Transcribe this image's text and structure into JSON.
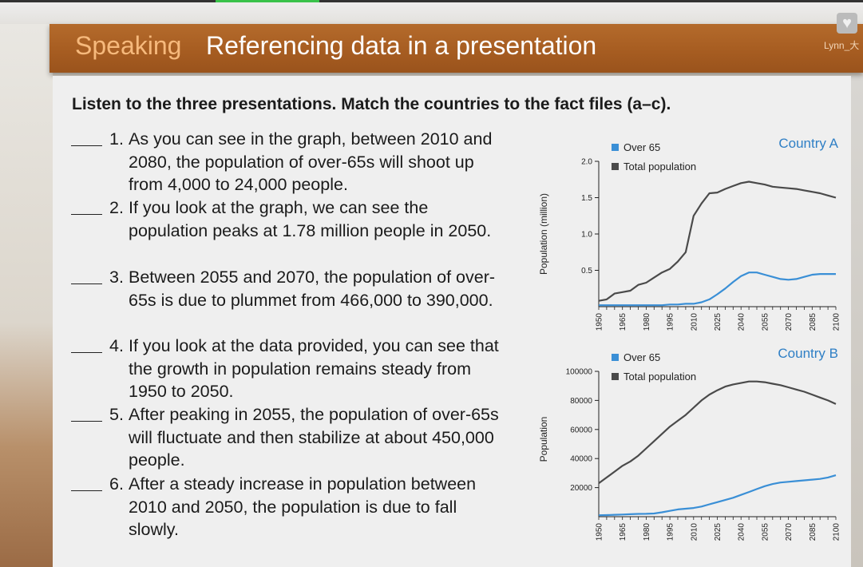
{
  "header": {
    "section": "Speaking",
    "title": "Referencing data in a presentation",
    "user": "Lynn_大"
  },
  "instruction": "Listen to the three presentations. Match the countries to the fact files (a–c).",
  "statements": [
    {
      "num": "1.",
      "text": "As you can see in the graph, between 2010 and 2080, the population of over-65s will shoot up from 4,000 to 24,000 people."
    },
    {
      "num": "2.",
      "text": "If you look at the graph, we can see the population peaks at 1.78 million people in 2050."
    },
    {
      "num": "3.",
      "text": "Between 2055 and 2070, the population of over-65s is due to plummet from 466,000 to 390,000."
    },
    {
      "num": "4.",
      "text": "If you look at the data provided, you can see that the growth in population remains steady from 1950 to 2050."
    },
    {
      "num": "5.",
      "text": "After peaking in 2055, the population of over-65s will fluctuate and then stabilize at about 450,000 people."
    },
    {
      "num": "6.",
      "text": "After a steady increase in population between 2010 and 2050, the population is due to fall slowly."
    }
  ],
  "colors": {
    "over65": "#3a8fd6",
    "total": "#4a4a4a",
    "title": "#2f7fc5",
    "banner": "#a85e22"
  },
  "chart_data": [
    {
      "type": "line",
      "title": "Country A",
      "ylabel": "Population (million)",
      "xlabel": "",
      "ylim": [
        0,
        2.0
      ],
      "yticks": [
        "2.0",
        "1.5",
        "1.0",
        "0.5"
      ],
      "x": [
        1950,
        1955,
        1960,
        1965,
        1970,
        1975,
        1980,
        1985,
        1990,
        1995,
        2000,
        2005,
        2010,
        2015,
        2020,
        2025,
        2030,
        2035,
        2040,
        2045,
        2050,
        2055,
        2060,
        2065,
        2070,
        2075,
        2080,
        2085,
        2090,
        2095,
        2100
      ],
      "xticks": [
        "1950",
        "1965",
        "1980",
        "1995",
        "2010",
        "2025",
        "2040",
        "2055",
        "2070",
        "2085",
        "2100"
      ],
      "legend": "top-left",
      "series": [
        {
          "name": "Over 65",
          "values": [
            0.02,
            0.02,
            0.02,
            0.02,
            0.02,
            0.02,
            0.02,
            0.02,
            0.02,
            0.03,
            0.03,
            0.04,
            0.04,
            0.06,
            0.1,
            0.17,
            0.25,
            0.34,
            0.42,
            0.47,
            0.47,
            0.44,
            0.41,
            0.38,
            0.37,
            0.38,
            0.41,
            0.44,
            0.45,
            0.45,
            0.45
          ]
        },
        {
          "name": "Total population",
          "values": [
            0.08,
            0.1,
            0.18,
            0.2,
            0.22,
            0.3,
            0.33,
            0.4,
            0.47,
            0.52,
            0.62,
            0.75,
            1.25,
            1.42,
            1.56,
            1.57,
            1.62,
            1.66,
            1.7,
            1.72,
            1.7,
            1.68,
            1.65,
            1.64,
            1.63,
            1.62,
            1.6,
            1.58,
            1.56,
            1.53,
            1.5
          ]
        }
      ]
    },
    {
      "type": "line",
      "title": "Country B",
      "ylabel": "Population",
      "xlabel": "",
      "ylim": [
        0,
        100000
      ],
      "yticks": [
        "100000",
        "80000",
        "60000",
        "40000",
        "20000"
      ],
      "x": [
        1950,
        1955,
        1960,
        1965,
        1970,
        1975,
        1980,
        1985,
        1990,
        1995,
        2000,
        2005,
        2010,
        2015,
        2020,
        2025,
        2030,
        2035,
        2040,
        2045,
        2050,
        2055,
        2060,
        2065,
        2070,
        2075,
        2080,
        2085,
        2090,
        2095,
        2100
      ],
      "xticks": [
        "1950",
        "1965",
        "1980",
        "1995",
        "2010",
        "2025",
        "2040",
        "2055",
        "2070",
        "2085",
        "2100"
      ],
      "legend": "top-left",
      "series": [
        {
          "name": "Over 65",
          "values": [
            1000,
            1100,
            1300,
            1500,
            1700,
            1900,
            2000,
            2200,
            3000,
            4000,
            5000,
            5500,
            6000,
            7000,
            8500,
            10000,
            11500,
            13000,
            15000,
            17000,
            19000,
            21000,
            22500,
            23500,
            24000,
            24500,
            25000,
            25500,
            26000,
            27000,
            28500
          ]
        },
        {
          "name": "Total population",
          "values": [
            23000,
            27000,
            31000,
            35000,
            38000,
            42000,
            47000,
            52000,
            57000,
            62000,
            66000,
            70000,
            75000,
            80000,
            84000,
            87000,
            89500,
            91000,
            92000,
            93000,
            93000,
            92500,
            91500,
            90500,
            89000,
            87500,
            86000,
            84000,
            82000,
            80000,
            77500
          ]
        }
      ]
    }
  ]
}
